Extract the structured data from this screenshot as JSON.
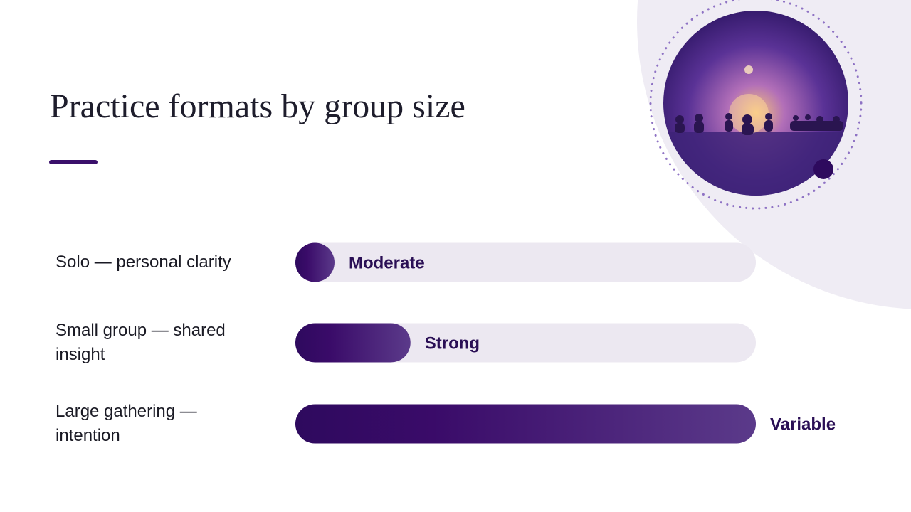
{
  "chart_data": {
    "type": "bar",
    "orientation": "horizontal",
    "title": "Practice formats by group size",
    "categories": [
      "Solo — personal clarity",
      "Small group — shared insight",
      "Large gathering — intention"
    ],
    "values": [
      8.5,
      25,
      100
    ],
    "value_labels": [
      "Moderate",
      "Strong",
      "Variable"
    ],
    "color": "#3a0f6b",
    "xlim": [
      0,
      100
    ]
  }
}
